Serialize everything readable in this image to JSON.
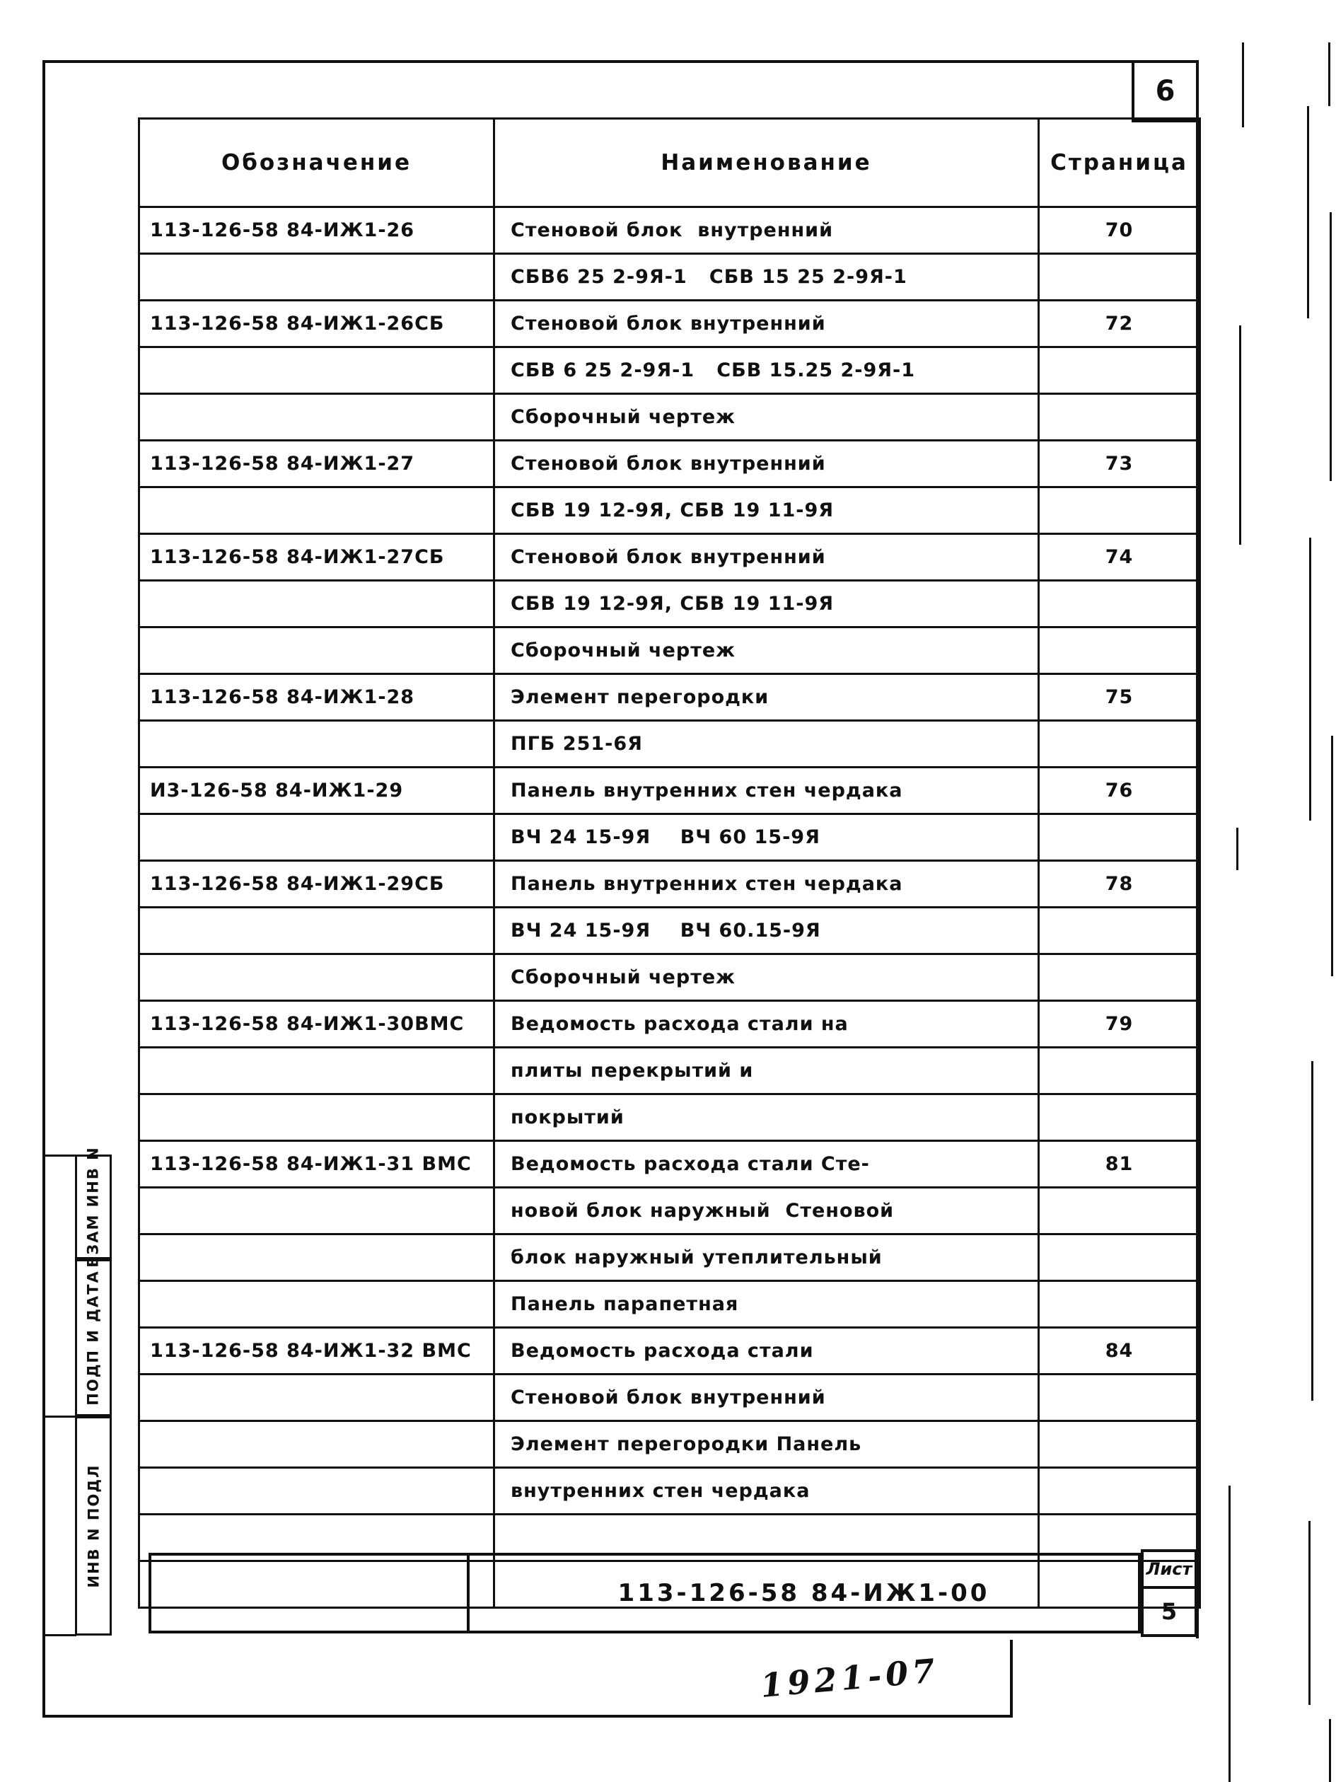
{
  "page": {
    "corner_sheet_number": "6",
    "handwritten_note": "1921-07"
  },
  "table": {
    "headers": {
      "designation": "Обозначение",
      "name": "Наименование",
      "page": "Страница"
    },
    "rows": [
      {
        "designation": "113-126-58 84-ИЖ1-26",
        "name": "Стеновой блок  внутренний",
        "page": "70"
      },
      {
        "designation": "",
        "name": "СБВ6 25 2-9Я-1   СБВ 15 25 2-9Я-1",
        "page": ""
      },
      {
        "designation": "113-126-58 84-ИЖ1-26СБ",
        "name": "Стеновой блок внутренний",
        "page": "72"
      },
      {
        "designation": "",
        "name": "СБВ 6 25 2-9Я-1   СБВ 15.25 2-9Я-1",
        "page": ""
      },
      {
        "designation": "",
        "name": "Сборочный чертеж",
        "page": ""
      },
      {
        "designation": "113-126-58 84-ИЖ1-27",
        "name": "Стеновой блок внутренний",
        "page": "73"
      },
      {
        "designation": "",
        "name": "СБВ 19 12-9Я, СБВ 19 11-9Я",
        "page": ""
      },
      {
        "designation": "113-126-58 84-ИЖ1-27СБ",
        "name": "Стеновой блок внутренний",
        "page": "74"
      },
      {
        "designation": "",
        "name": "СБВ 19 12-9Я, СБВ 19 11-9Я",
        "page": ""
      },
      {
        "designation": "",
        "name": "Сборочный чертеж",
        "page": ""
      },
      {
        "designation": "113-126-58 84-ИЖ1-28",
        "name": "Элемент перегородки",
        "page": "75"
      },
      {
        "designation": "",
        "name": "ПГБ 251-6Я",
        "page": ""
      },
      {
        "designation": "И3-126-58 84-ИЖ1-29",
        "name": "Панель внутренних стен чердака",
        "page": "76"
      },
      {
        "designation": "",
        "name": "ВЧ 24 15-9Я    ВЧ 60 15-9Я",
        "page": ""
      },
      {
        "designation": "113-126-58 84-ИЖ1-29СБ",
        "name": "Панель внутренних стен чердака",
        "page": "78"
      },
      {
        "designation": "",
        "name": "ВЧ 24 15-9Я    ВЧ 60.15-9Я",
        "page": ""
      },
      {
        "designation": "",
        "name": "Сборочный чертеж",
        "page": ""
      },
      {
        "designation": "113-126-58 84-ИЖ1-30ВМС",
        "name": "Ведомость расхода стали на",
        "page": "79"
      },
      {
        "designation": "",
        "name": "плиты перекрытий и",
        "page": ""
      },
      {
        "designation": "",
        "name": "покрытий",
        "page": ""
      },
      {
        "designation": "113-126-58 84-ИЖ1-31 ВМС",
        "name": "Ведомость расхода стали Сте-",
        "page": "81"
      },
      {
        "designation": "",
        "name": "новой блок наружный  Стеновой",
        "page": ""
      },
      {
        "designation": "",
        "name": "блок наружный утеплительный",
        "page": ""
      },
      {
        "designation": "",
        "name": "Панель парапетная",
        "page": ""
      },
      {
        "designation": "113-126-58 84-ИЖ1-32 ВМС",
        "name": "Ведомость расхода стали",
        "page": "84"
      },
      {
        "designation": "",
        "name": "Стеновой блок внутренний",
        "page": ""
      },
      {
        "designation": "",
        "name": "Элемент перегородки Панель",
        "page": ""
      },
      {
        "designation": "",
        "name": "внутренних стен чердака",
        "page": ""
      },
      {
        "designation": "",
        "name": "",
        "page": ""
      },
      {
        "designation": "",
        "name": "",
        "page": ""
      }
    ]
  },
  "stamp_sidebar": {
    "items": [
      {
        "label": "ВЗАМ ИНВ N"
      },
      {
        "label": "ПОДП И ДАТА"
      },
      {
        "label": "ИНВ N ПОДЛ"
      }
    ]
  },
  "footer": {
    "document_number": "113-126-58 84-ИЖ1-00",
    "sheet_label": "Лист",
    "sheet_number": "5"
  },
  "colors": {
    "ink": "#101010",
    "paper": "#ffffff"
  }
}
